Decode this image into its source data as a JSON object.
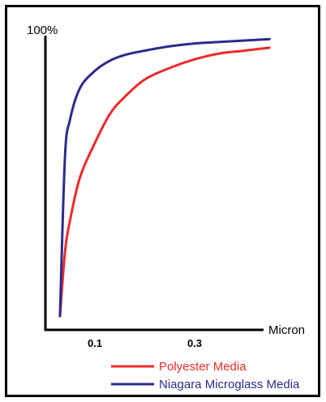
{
  "chart_data": {
    "type": "line",
    "title": "",
    "ylabel": "100%",
    "xlabel": "Micron",
    "x_ticks": [
      "0.1",
      "0.3"
    ],
    "ylim": [
      0,
      100
    ],
    "grid": false,
    "legend_position": "bottom-right",
    "x": [
      0.03,
      0.04,
      0.05,
      0.07,
      0.1,
      0.13,
      0.16,
      0.2,
      0.25,
      0.3,
      0.35,
      0.4,
      0.45
    ],
    "series": [
      {
        "name": "Polyester Media",
        "color": "#ee2a2a",
        "values": [
          0,
          22,
          33,
          48,
          60,
          70,
          76,
          82,
          86,
          89,
          91,
          92,
          93
        ]
      },
      {
        "name": "Niagara Microglass Media",
        "color": "#2a2a8e",
        "values": [
          0,
          55,
          68,
          79,
          85,
          88.5,
          90.5,
          92,
          93.5,
          94.5,
          95,
          95.5,
          96
        ]
      }
    ]
  }
}
